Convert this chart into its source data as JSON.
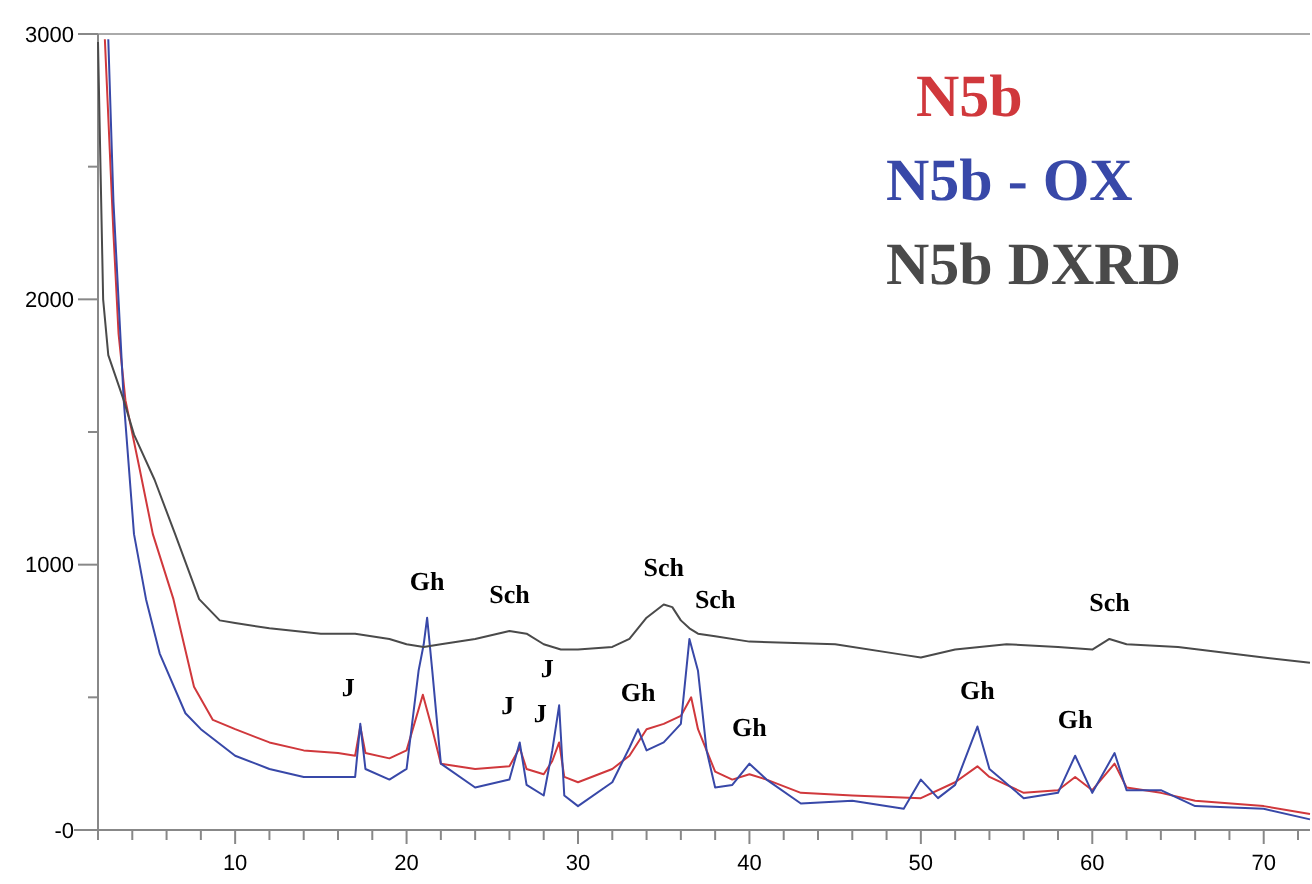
{
  "chart_data": {
    "type": "line",
    "xlim": [
      2,
      72.7
    ],
    "ylim": [
      0,
      3000
    ],
    "xticks": [
      {
        "value": 2,
        "label": null
      },
      {
        "value": 4,
        "label": null
      },
      {
        "value": 6,
        "label": null
      },
      {
        "value": 8,
        "label": null
      },
      10,
      {
        "value": 12,
        "label": null
      },
      {
        "value": 14,
        "label": null
      },
      {
        "value": 16,
        "label": null
      },
      {
        "value": 18,
        "label": null
      },
      20,
      {
        "value": 22,
        "label": null
      },
      {
        "value": 24,
        "label": null
      },
      {
        "value": 26,
        "label": null
      },
      {
        "value": 28,
        "label": null
      },
      30,
      {
        "value": 32,
        "label": null
      },
      {
        "value": 34,
        "label": null
      },
      {
        "value": 36,
        "label": null
      },
      {
        "value": 38,
        "label": null
      },
      40,
      {
        "value": 42,
        "label": null
      },
      {
        "value": 44,
        "label": null
      },
      {
        "value": 46,
        "label": null
      },
      {
        "value": 48,
        "label": null
      },
      50,
      {
        "value": 52,
        "label": null
      },
      {
        "value": 54,
        "label": null
      },
      {
        "value": 56,
        "label": null
      },
      {
        "value": 58,
        "label": null
      },
      60,
      {
        "value": 62,
        "label": null
      },
      {
        "value": 64,
        "label": null
      },
      {
        "value": 66,
        "label": null
      },
      {
        "value": 68,
        "label": null
      },
      70,
      {
        "value": 72,
        "label": null
      }
    ],
    "yticks": [
      {
        "value": 0,
        "label": "-0"
      },
      {
        "value": 500,
        "label": null
      },
      1000,
      {
        "value": 1500,
        "label": null
      },
      2000,
      {
        "value": 2500,
        "label": null
      },
      3000
    ],
    "grid": false,
    "legend": "top right",
    "marker": "none",
    "line_style": "solid",
    "series": [
      {
        "name": "N5b",
        "color": "#d0383c",
        "x": [
          2.4,
          2.9,
          3.2,
          3.6,
          4.4,
          5.2,
          6.4,
          7.6,
          8.7,
          10,
          12,
          14,
          16,
          17,
          17.3,
          17.6,
          19,
          20,
          20.95,
          21.5,
          22,
          24,
          26,
          26.6,
          27,
          28,
          28.5,
          28.9,
          29.2,
          30,
          32,
          33,
          34,
          35,
          36,
          36.6,
          37,
          38,
          39,
          40,
          41,
          43,
          46,
          50,
          52,
          53.3,
          54,
          56,
          58,
          59,
          60,
          61.3,
          62,
          64,
          66,
          70,
          72.7
        ],
        "values": [
          2980,
          2250,
          1870,
          1620,
          1370,
          1115,
          870,
          540,
          415,
          380,
          330,
          300,
          290,
          280,
          390,
          290,
          270,
          300,
          510,
          380,
          250,
          230,
          240,
          310,
          230,
          210,
          260,
          330,
          200,
          180,
          230,
          280,
          380,
          400,
          430,
          500,
          380,
          220,
          190,
          210,
          190,
          140,
          130,
          120,
          180,
          240,
          200,
          140,
          150,
          200,
          150,
          250,
          160,
          140,
          110,
          90,
          60
        ]
      },
      {
        "name": "N5b - OX",
        "color": "#3848a8",
        "x": [
          2.6,
          2.9,
          3.5,
          4.1,
          4.8,
          5.6,
          7.1,
          8,
          10,
          12,
          14,
          17,
          17.3,
          17.6,
          19,
          20,
          20.7,
          21,
          21.2,
          21.5,
          22,
          24,
          26,
          26.6,
          27,
          28,
          28.5,
          28.9,
          29.2,
          30,
          32,
          33,
          33.5,
          34,
          35,
          36,
          36.5,
          37,
          37.5,
          38,
          39,
          40,
          41,
          43,
          46,
          49,
          50,
          51,
          52,
          53.3,
          54,
          56,
          58,
          59,
          60,
          61.3,
          62,
          64,
          66,
          70,
          72.7
        ],
        "values": [
          2980,
          2370,
          1620,
          1115,
          870,
          665,
          440,
          380,
          280,
          230,
          200,
          200,
          400,
          230,
          190,
          230,
          600,
          700,
          800,
          600,
          250,
          160,
          190,
          330,
          170,
          130,
          300,
          470,
          130,
          90,
          180,
          310,
          380,
          300,
          330,
          400,
          720,
          600,
          300,
          160,
          170,
          250,
          190,
          100,
          110,
          80,
          190,
          120,
          170,
          390,
          230,
          120,
          140,
          280,
          140,
          290,
          150,
          150,
          90,
          80,
          40
        ]
      },
      {
        "name": "N5b DXRD",
        "color": "#4a4a4a",
        "x": [
          2,
          2.3,
          2.6,
          3.5,
          4.1,
          5.3,
          6.5,
          7.9,
          9.1,
          10,
          12,
          15,
          17,
          19,
          20,
          21,
          22,
          24,
          26,
          27,
          28,
          29,
          30,
          32,
          33,
          34,
          35,
          35.5,
          36,
          36.5,
          37,
          38,
          40,
          45,
          49,
          50,
          52,
          55,
          58,
          60,
          61,
          62,
          65,
          70,
          72.7
        ],
        "values": [
          2970,
          2000,
          1790,
          1620,
          1490,
          1320,
          1115,
          870,
          790,
          780,
          760,
          740,
          740,
          720,
          700,
          690,
          700,
          720,
          750,
          740,
          700,
          680,
          680,
          690,
          720,
          800,
          850,
          840,
          790,
          760,
          740,
          730,
          710,
          700,
          660,
          650,
          680,
          700,
          690,
          680,
          720,
          700,
          690,
          650,
          630
        ]
      }
    ],
    "annotations": [
      {
        "text": "J",
        "x": 17.3,
        "y": 400
      },
      {
        "text": "Gh",
        "x": 21.2,
        "y": 800
      },
      {
        "text": "Sch",
        "x": 26,
        "y": 750
      },
      {
        "text": "J",
        "x": 26.6,
        "y": 330
      },
      {
        "text": "J",
        "x": 28.5,
        "y": 300
      },
      {
        "text": "J",
        "x": 28.9,
        "y": 470
      },
      {
        "text": "Gh",
        "x": 33.5,
        "y": 380
      },
      {
        "text": "Sch",
        "x": 35,
        "y": 850
      },
      {
        "text": "Sch",
        "x": 38,
        "y": 730
      },
      {
        "text": "Gh",
        "x": 40,
        "y": 250
      },
      {
        "text": "Gh",
        "x": 53.3,
        "y": 390
      },
      {
        "text": "Gh",
        "x": 59,
        "y": 280
      },
      {
        "text": "Sch",
        "x": 61,
        "y": 720
      }
    ]
  }
}
